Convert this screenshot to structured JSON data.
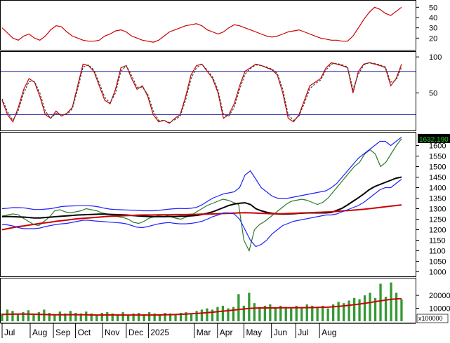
{
  "chart_data": [
    {
      "type": "line",
      "panel": "adx",
      "yticks": [
        20,
        30,
        40,
        50
      ],
      "ylim": [
        10,
        55
      ],
      "series": [
        {
          "color": "#cc0000",
          "values": [
            30,
            25,
            20,
            18,
            22,
            24,
            20,
            18,
            22,
            28,
            32,
            31,
            26,
            22,
            20,
            18,
            17,
            17,
            18,
            22,
            24,
            27,
            28,
            26,
            22,
            20,
            18,
            17,
            16,
            18,
            22,
            26,
            28,
            30,
            32,
            33,
            34,
            32,
            28,
            26,
            24,
            26,
            30,
            33,
            32,
            30,
            28,
            26,
            24,
            22,
            21,
            22,
            24,
            26,
            27,
            28,
            26,
            24,
            22,
            20,
            19,
            18,
            18,
            17,
            17,
            22,
            30,
            38,
            45,
            50,
            48,
            44,
            42,
            46,
            50
          ]
        }
      ]
    },
    {
      "type": "line",
      "panel": "stochastic",
      "yticks": [
        50,
        100
      ],
      "ylim": [
        0,
        105
      ],
      "reference_lines": [
        80,
        20
      ],
      "series": [
        {
          "color": "#cc0000",
          "values": [
            40,
            20,
            10,
            30,
            55,
            70,
            65,
            45,
            20,
            15,
            25,
            18,
            22,
            30,
            60,
            90,
            88,
            80,
            60,
            40,
            35,
            55,
            85,
            88,
            70,
            55,
            60,
            45,
            20,
            10,
            12,
            8,
            15,
            20,
            45,
            75,
            88,
            90,
            80,
            70,
            50,
            15,
            20,
            35,
            60,
            80,
            85,
            90,
            88,
            85,
            82,
            75,
            50,
            15,
            10,
            20,
            40,
            60,
            65,
            70,
            85,
            92,
            90,
            88,
            85,
            50,
            80,
            90,
            92,
            90,
            88,
            85,
            60,
            70,
            90
          ]
        },
        {
          "color": "#404040",
          "values": [
            42,
            24,
            12,
            26,
            50,
            66,
            66,
            50,
            25,
            15,
            22,
            20,
            20,
            28,
            55,
            86,
            89,
            82,
            64,
            44,
            36,
            50,
            80,
            88,
            74,
            58,
            58,
            48,
            25,
            12,
            12,
            9,
            13,
            18,
            40,
            70,
            85,
            90,
            82,
            72,
            54,
            20,
            18,
            30,
            55,
            76,
            84,
            89,
            88,
            86,
            83,
            77,
            55,
            20,
            12,
            18,
            36,
            56,
            63,
            68,
            82,
            90,
            91,
            89,
            86,
            55,
            76,
            89,
            92,
            91,
            89,
            86,
            65,
            68,
            86
          ]
        }
      ]
    },
    {
      "type": "line",
      "panel": "price",
      "yticks": [
        1000,
        1050,
        1100,
        1150,
        1200,
        1250,
        1300,
        1350,
        1400,
        1450,
        1500,
        1550,
        1600
      ],
      "ylim": [
        985,
        1655
      ],
      "last_price_label": "1632.190",
      "series": [
        {
          "color": "#2a7a2a",
          "values": [
            1265,
            1270,
            1275,
            1272,
            1255,
            1240,
            1225,
            1220,
            1240,
            1260,
            1290,
            1295,
            1285,
            1280,
            1285,
            1290,
            1300,
            1295,
            1290,
            1280,
            1275,
            1270,
            1262,
            1258,
            1250,
            1235,
            1230,
            1240,
            1255,
            1262,
            1268,
            1270,
            1262,
            1255,
            1250,
            1260,
            1270,
            1285,
            1300,
            1315,
            1325,
            1335,
            1345,
            1340,
            1330,
            1320,
            1150,
            1100,
            1200,
            1225,
            1240,
            1260,
            1280,
            1300,
            1320,
            1335,
            1340,
            1345,
            1340,
            1330,
            1320,
            1330,
            1350,
            1380,
            1410,
            1440,
            1470,
            1500,
            1520,
            1560,
            1580,
            1560,
            1500,
            1520,
            1560,
            1600,
            1632
          ]
        },
        {
          "color": "#000000",
          "values": [
            1262,
            1263,
            1262,
            1261,
            1260,
            1258,
            1256,
            1256,
            1258,
            1260,
            1262,
            1264,
            1266,
            1268,
            1270,
            1271,
            1272,
            1273,
            1274,
            1274,
            1273,
            1272,
            1271,
            1270,
            1268,
            1266,
            1264,
            1263,
            1262,
            1262,
            1262,
            1263,
            1263,
            1264,
            1264,
            1266,
            1268,
            1272,
            1278,
            1285,
            1295,
            1305,
            1315,
            1322,
            1326,
            1328,
            1320,
            1300,
            1290,
            1283,
            1278,
            1275,
            1274,
            1275,
            1276,
            1278,
            1279,
            1280,
            1280,
            1280,
            1280,
            1282,
            1292,
            1302,
            1318,
            1335,
            1352,
            1370,
            1390,
            1405,
            1415,
            1425,
            1435,
            1445,
            1450
          ]
        },
        {
          "color": "#cc0000",
          "values": [
            1200,
            1205,
            1210,
            1215,
            1218,
            1222,
            1226,
            1230,
            1233,
            1236,
            1240,
            1243,
            1246,
            1249,
            1252,
            1254,
            1256,
            1258,
            1260,
            1262,
            1264,
            1265,
            1266,
            1267,
            1268,
            1269,
            1270,
            1270,
            1270,
            1271,
            1271,
            1271,
            1272,
            1272,
            1272,
            1273,
            1273,
            1274,
            1274,
            1275,
            1276,
            1277,
            1278,
            1279,
            1280,
            1281,
            1280,
            1279,
            1278,
            1277,
            1276,
            1276,
            1276,
            1277,
            1278,
            1279,
            1280,
            1281,
            1282,
            1283,
            1284,
            1285,
            1287,
            1289,
            1291,
            1293,
            1295,
            1297,
            1300,
            1303,
            1306,
            1309,
            1312,
            1315,
            1318
          ]
        },
        {
          "color": "#2020ff",
          "values": [
            1300,
            1302,
            1305,
            1305,
            1304,
            1300,
            1296,
            1296,
            1298,
            1300,
            1305,
            1310,
            1312,
            1313,
            1314,
            1314,
            1314,
            1312,
            1308,
            1302,
            1298,
            1296,
            1295,
            1294,
            1293,
            1292,
            1290,
            1290,
            1290,
            1292,
            1295,
            1298,
            1300,
            1301,
            1300,
            1302,
            1306,
            1318,
            1334,
            1350,
            1360,
            1370,
            1375,
            1380,
            1400,
            1460,
            1480,
            1440,
            1400,
            1380,
            1360,
            1350,
            1348,
            1350,
            1355,
            1360,
            1365,
            1370,
            1375,
            1380,
            1385,
            1400,
            1420,
            1450,
            1480,
            1510,
            1540,
            1560,
            1580,
            1600,
            1620,
            1620,
            1600,
            1620,
            1640
          ]
        },
        {
          "color": "#2020ff",
          "values": [
            1225,
            1223,
            1218,
            1210,
            1205,
            1205,
            1205,
            1208,
            1215,
            1220,
            1225,
            1228,
            1230,
            1235,
            1240,
            1245,
            1245,
            1242,
            1240,
            1238,
            1236,
            1234,
            1232,
            1228,
            1220,
            1212,
            1210,
            1215,
            1222,
            1228,
            1232,
            1234,
            1230,
            1228,
            1228,
            1230,
            1234,
            1240,
            1250,
            1262,
            1270,
            1280,
            1280,
            1275,
            1250,
            1200,
            1150,
            1120,
            1130,
            1150,
            1180,
            1200,
            1220,
            1230,
            1240,
            1245,
            1250,
            1255,
            1260,
            1265,
            1270,
            1270,
            1275,
            1285,
            1295,
            1305,
            1315,
            1330,
            1350,
            1370,
            1390,
            1400,
            1400,
            1420,
            1440
          ]
        }
      ]
    },
    {
      "type": "bar",
      "panel": "volume",
      "yticks": [
        10000,
        20000
      ],
      "ylim": [
        0,
        32000
      ],
      "unit_label": "x100000",
      "bar_color": "#339933",
      "ma_color": "#cc0000",
      "values": [
        6000,
        9000,
        8000,
        5500,
        7000,
        8500,
        6000,
        7000,
        9000,
        6500,
        5500,
        7500,
        6000,
        8000,
        6500,
        6000,
        7500,
        6000,
        5000,
        6500,
        7000,
        6000,
        5500,
        7000,
        5000,
        6000,
        6500,
        5500,
        7000,
        6000,
        5500,
        6500,
        6000,
        5000,
        6500,
        7000,
        6000,
        8000,
        9000,
        10000,
        9000,
        11000,
        12000,
        10000,
        11000,
        21000,
        12000,
        22000,
        14000,
        11000,
        12000,
        13000,
        10000,
        12000,
        11000,
        10000,
        12000,
        11000,
        13000,
        12000,
        11000,
        12000,
        10000,
        13000,
        15000,
        14000,
        16000,
        18000,
        17000,
        20000,
        22000,
        18000,
        29000,
        19000,
        30000,
        22000,
        17000
      ],
      "ma": [
        5200,
        5400,
        5500,
        5600,
        5600,
        5500,
        5400,
        5300,
        5200,
        5100,
        5000,
        5000,
        5000,
        5100,
        5100,
        5000,
        5000,
        4900,
        4800,
        4800,
        4900,
        4900,
        4800,
        4800,
        4800,
        4800,
        4800,
        4800,
        4800,
        4800,
        4900,
        5000,
        5100,
        5200,
        5400,
        5600,
        5800,
        6000,
        6300,
        6600,
        7000,
        7400,
        7800,
        8200,
        8600,
        9100,
        9500,
        9900,
        10200,
        10300,
        10300,
        10300,
        10300,
        10400,
        10400,
        10400,
        10400,
        10500,
        10500,
        10600,
        10700,
        10800,
        10900,
        11200,
        11500,
        11900,
        12300,
        12800,
        13300,
        13900,
        14500,
        15200,
        15800,
        16400,
        17000,
        17300,
        17500
      ]
    }
  ],
  "months": [
    {
      "label": "Jul",
      "idx": 0
    },
    {
      "label": "Aug",
      "idx": 5.2
    },
    {
      "label": "Sep",
      "idx": 9.5
    },
    {
      "label": "Oct",
      "idx": 13.6
    },
    {
      "label": "Nov",
      "idx": 18.6
    },
    {
      "label": "Dec",
      "idx": 23.0
    },
    {
      "label": "2025",
      "idx": 27.1
    },
    {
      "label": "Mar",
      "idx": 35.6
    },
    {
      "label": "Apr",
      "idx": 39.9
    },
    {
      "label": "May",
      "idx": 44.8
    },
    {
      "label": "Jun",
      "idx": 49.9
    },
    {
      "label": "Jul",
      "idx": 54.4
    },
    {
      "label": "Aug",
      "idx": 58.8
    }
  ]
}
